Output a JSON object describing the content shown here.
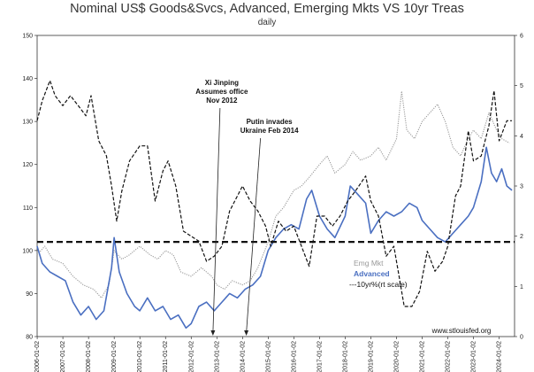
{
  "chart_data": {
    "type": "line",
    "title": "Nominal US$ Goods&Svcs, Advanced, Emerging Mkts VS 10yr Treas",
    "subtitle": "daily",
    "left_axis": {
      "min": 80,
      "max": 150,
      "ticks": [
        "80",
        "90",
        "100",
        "110",
        "120",
        "130",
        "140",
        "150"
      ]
    },
    "right_axis": {
      "min": 0,
      "max": 6,
      "ticks": [
        "0",
        "1",
        "2",
        "3",
        "4",
        "5",
        "6"
      ]
    },
    "x_ticks": [
      "2006-01-02",
      "2007-01-02",
      "2008-01-02",
      "2009-01-02",
      "2010-01-02",
      "2011-01-02",
      "2012-01-02",
      "2013-01-02",
      "2014-01-02",
      "2015-01-02",
      "2016-01-02",
      "2017-01-02",
      "2018-01-02",
      "2019-01-02",
      "2020-01-02",
      "2021-01-02",
      "2022-01-02",
      "2023-01-02",
      "2024-01-02"
    ],
    "x_range": [
      2006.0,
      2024.6
    ],
    "reference_line": {
      "value": 102,
      "axis": "left",
      "style": "dashed"
    },
    "annotations": [
      {
        "lines": [
          "Xi Jinping",
          "Assumes office",
          "Nov 2012"
        ],
        "x": 2012.85
      },
      {
        "lines": [
          "Putin invades",
          "Ukraine Feb 2014"
        ],
        "x": 2014.15
      }
    ],
    "legend": {
      "position": "lower-right",
      "items": [
        {
          "label": "Emg Mkt",
          "color": "#9a9a9a"
        },
        {
          "label": "Advanced",
          "color": "#4a6fc1"
        },
        {
          "label": "---10yr%(rt scale)",
          "color": "#111111"
        }
      ]
    },
    "source_label": "www.stlouisfed.org",
    "series": [
      {
        "name": "Emg Mkt",
        "axis": "left",
        "color": "#9a9a9a",
        "style": "dotted",
        "points": [
          [
            2006.0,
            99
          ],
          [
            2006.3,
            101
          ],
          [
            2006.6,
            98
          ],
          [
            2007.0,
            97
          ],
          [
            2007.4,
            94
          ],
          [
            2007.8,
            92
          ],
          [
            2008.2,
            91
          ],
          [
            2008.5,
            89
          ],
          [
            2008.8,
            92
          ],
          [
            2009.0,
            100
          ],
          [
            2009.3,
            98
          ],
          [
            2009.6,
            99
          ],
          [
            2010.0,
            101
          ],
          [
            2010.4,
            99
          ],
          [
            2010.7,
            98
          ],
          [
            2011.0,
            100
          ],
          [
            2011.3,
            99
          ],
          [
            2011.6,
            95
          ],
          [
            2012.0,
            94
          ],
          [
            2012.4,
            96
          ],
          [
            2012.8,
            94
          ],
          [
            2013.0,
            92
          ],
          [
            2013.3,
            91
          ],
          [
            2013.6,
            93
          ],
          [
            2014.0,
            92
          ],
          [
            2014.3,
            93
          ],
          [
            2014.6,
            96
          ],
          [
            2015.0,
            102
          ],
          [
            2015.3,
            108
          ],
          [
            2015.6,
            110
          ],
          [
            2016.0,
            114
          ],
          [
            2016.3,
            115
          ],
          [
            2016.6,
            117
          ],
          [
            2017.0,
            120
          ],
          [
            2017.3,
            122
          ],
          [
            2017.6,
            118
          ],
          [
            2018.0,
            120
          ],
          [
            2018.3,
            123
          ],
          [
            2018.6,
            121
          ],
          [
            2019.0,
            122
          ],
          [
            2019.3,
            124
          ],
          [
            2019.6,
            121
          ],
          [
            2020.0,
            126
          ],
          [
            2020.2,
            137
          ],
          [
            2020.4,
            128
          ],
          [
            2020.7,
            126
          ],
          [
            2021.0,
            130
          ],
          [
            2021.3,
            132
          ],
          [
            2021.6,
            134
          ],
          [
            2021.9,
            130
          ],
          [
            2022.2,
            124
          ],
          [
            2022.5,
            122
          ],
          [
            2022.8,
            126
          ],
          [
            2023.0,
            128
          ],
          [
            2023.3,
            126
          ],
          [
            2023.6,
            132
          ],
          [
            2023.9,
            128
          ],
          [
            2024.1,
            126
          ],
          [
            2024.4,
            125
          ]
        ]
      },
      {
        "name": "Advanced",
        "axis": "left",
        "color": "#4a6fc1",
        "style": "solid",
        "points": [
          [
            2006.0,
            101
          ],
          [
            2006.2,
            97
          ],
          [
            2006.5,
            95
          ],
          [
            2006.8,
            94
          ],
          [
            2007.1,
            93
          ],
          [
            2007.4,
            88
          ],
          [
            2007.7,
            85
          ],
          [
            2008.0,
            87
          ],
          [
            2008.3,
            84
          ],
          [
            2008.6,
            86
          ],
          [
            2008.9,
            96
          ],
          [
            2009.0,
            103
          ],
          [
            2009.2,
            95
          ],
          [
            2009.5,
            90
          ],
          [
            2009.8,
            87
          ],
          [
            2010.0,
            86
          ],
          [
            2010.3,
            89
          ],
          [
            2010.6,
            86
          ],
          [
            2010.9,
            87
          ],
          [
            2011.2,
            84
          ],
          [
            2011.5,
            85
          ],
          [
            2011.8,
            82
          ],
          [
            2012.0,
            83
          ],
          [
            2012.3,
            87
          ],
          [
            2012.6,
            88
          ],
          [
            2012.9,
            86
          ],
          [
            2013.2,
            88
          ],
          [
            2013.5,
            90
          ],
          [
            2013.8,
            89
          ],
          [
            2014.1,
            91
          ],
          [
            2014.4,
            92
          ],
          [
            2014.7,
            94
          ],
          [
            2015.0,
            100
          ],
          [
            2015.3,
            103
          ],
          [
            2015.6,
            105
          ],
          [
            2015.9,
            106
          ],
          [
            2016.2,
            105
          ],
          [
            2016.5,
            112
          ],
          [
            2016.7,
            114
          ],
          [
            2017.0,
            108
          ],
          [
            2017.3,
            105
          ],
          [
            2017.6,
            103
          ],
          [
            2018.0,
            108
          ],
          [
            2018.2,
            115
          ],
          [
            2018.5,
            113
          ],
          [
            2018.8,
            111
          ],
          [
            2019.0,
            104
          ],
          [
            2019.3,
            107
          ],
          [
            2019.6,
            109
          ],
          [
            2019.9,
            108
          ],
          [
            2020.2,
            109
          ],
          [
            2020.5,
            111
          ],
          [
            2020.8,
            110
          ],
          [
            2021.0,
            107
          ],
          [
            2021.3,
            105
          ],
          [
            2021.6,
            103
          ],
          [
            2021.9,
            102
          ],
          [
            2022.2,
            104
          ],
          [
            2022.5,
            106
          ],
          [
            2022.8,
            108
          ],
          [
            2023.0,
            110
          ],
          [
            2023.3,
            116
          ],
          [
            2023.5,
            124
          ],
          [
            2023.7,
            118
          ],
          [
            2023.9,
            116
          ],
          [
            2024.1,
            119
          ],
          [
            2024.3,
            115
          ],
          [
            2024.5,
            114
          ]
        ]
      },
      {
        "name": "10yr% (rt scale)",
        "axis": "right",
        "color": "#111111",
        "style": "dashed",
        "points": [
          [
            2006.0,
            4.3
          ],
          [
            2006.2,
            4.7
          ],
          [
            2006.5,
            5.1
          ],
          [
            2006.7,
            4.8
          ],
          [
            2007.0,
            4.6
          ],
          [
            2007.3,
            4.8
          ],
          [
            2007.6,
            4.6
          ],
          [
            2007.9,
            4.4
          ],
          [
            2008.1,
            4.8
          ],
          [
            2008.4,
            3.9
          ],
          [
            2008.7,
            3.6
          ],
          [
            2008.9,
            3.0
          ],
          [
            2009.1,
            2.3
          ],
          [
            2009.3,
            2.9
          ],
          [
            2009.6,
            3.5
          ],
          [
            2010.0,
            3.8
          ],
          [
            2010.3,
            3.8
          ],
          [
            2010.6,
            2.7
          ],
          [
            2010.9,
            3.3
          ],
          [
            2011.1,
            3.5
          ],
          [
            2011.4,
            3.0
          ],
          [
            2011.7,
            2.1
          ],
          [
            2012.0,
            2.0
          ],
          [
            2012.3,
            1.9
          ],
          [
            2012.6,
            1.5
          ],
          [
            2012.9,
            1.6
          ],
          [
            2013.2,
            1.8
          ],
          [
            2013.5,
            2.5
          ],
          [
            2013.8,
            2.8
          ],
          [
            2014.0,
            3.0
          ],
          [
            2014.3,
            2.7
          ],
          [
            2014.6,
            2.5
          ],
          [
            2014.9,
            2.2
          ],
          [
            2015.1,
            1.8
          ],
          [
            2015.4,
            2.3
          ],
          [
            2015.7,
            2.1
          ],
          [
            2016.0,
            2.2
          ],
          [
            2016.3,
            1.8
          ],
          [
            2016.6,
            1.4
          ],
          [
            2016.9,
            2.4
          ],
          [
            2017.2,
            2.4
          ],
          [
            2017.5,
            2.2
          ],
          [
            2017.8,
            2.4
          ],
          [
            2018.1,
            2.7
          ],
          [
            2018.4,
            2.9
          ],
          [
            2018.8,
            3.2
          ],
          [
            2019.0,
            2.7
          ],
          [
            2019.3,
            2.4
          ],
          [
            2019.6,
            1.6
          ],
          [
            2019.9,
            1.8
          ],
          [
            2020.1,
            1.2
          ],
          [
            2020.3,
            0.6
          ],
          [
            2020.6,
            0.6
          ],
          [
            2020.9,
            0.9
          ],
          [
            2021.2,
            1.7
          ],
          [
            2021.5,
            1.3
          ],
          [
            2021.8,
            1.5
          ],
          [
            2022.0,
            1.8
          ],
          [
            2022.3,
            2.8
          ],
          [
            2022.5,
            3.0
          ],
          [
            2022.8,
            4.1
          ],
          [
            2023.0,
            3.5
          ],
          [
            2023.3,
            3.6
          ],
          [
            2023.6,
            4.2
          ],
          [
            2023.8,
            4.9
          ],
          [
            2024.0,
            3.9
          ],
          [
            2024.3,
            4.3
          ],
          [
            2024.5,
            4.3
          ]
        ]
      }
    ]
  }
}
